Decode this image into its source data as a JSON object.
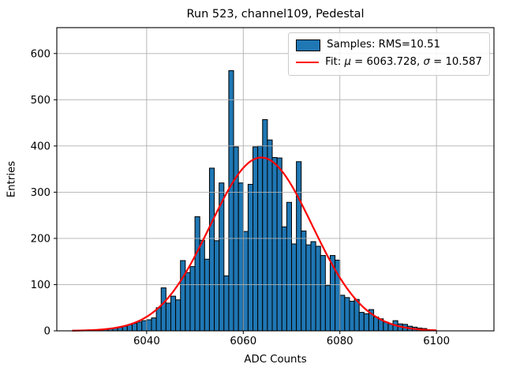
{
  "chart_data": {
    "type": "bar",
    "subtype": "histogram_with_gaussian_fit",
    "title": "Run 523, channel109, Pedestal",
    "xlabel": "ADC Counts",
    "ylabel": "Entries",
    "xlim": [
      6021.4,
      6111.9
    ],
    "ylim": [
      0,
      656
    ],
    "xticks": [
      6040,
      6060,
      6080,
      6100
    ],
    "yticks": [
      0,
      100,
      200,
      300,
      400,
      500,
      600
    ],
    "grid": true,
    "grid_color": "#b0b0b0",
    "legend_position": "upper right",
    "series": [
      {
        "name": "Samples: RMS=10.51",
        "kind": "histogram",
        "color": "#1f77b4",
        "edgecolor": "#000000",
        "bin_width": 1,
        "first_bin": 6026,
        "counts": [
          1,
          1,
          2,
          2,
          3,
          3,
          5,
          6,
          8,
          10,
          13,
          16,
          19,
          22,
          24,
          28,
          50,
          93,
          60,
          75,
          67,
          152,
          126,
          139,
          247,
          196,
          155,
          352,
          195,
          320,
          119,
          563,
          398,
          320,
          215,
          317,
          398,
          400,
          457,
          413,
          375,
          374,
          225,
          278,
          188,
          366,
          216,
          186,
          193,
          183,
          163,
          98,
          163,
          153,
          77,
          72,
          64,
          68,
          40,
          37,
          46,
          30,
          26,
          19,
          15,
          22,
          15,
          14,
          10,
          8,
          6,
          5,
          2
        ]
      },
      {
        "name": "Fit: μ = 6063.728, σ = 10.587",
        "kind": "gaussian",
        "color": "#ff0000",
        "mu": 6063.728,
        "sigma": 10.587,
        "amplitude": 375,
        "x_start": 6024.7,
        "x_end": 6100
      }
    ]
  },
  "legend": {
    "samples_label": "Samples: RMS=10.51",
    "fit": {
      "prefix": "Fit: ",
      "mu_symbol": "μ",
      "mu_eq": " = 6063.728, ",
      "sigma_symbol": "σ",
      "sigma_eq": " = 10.587"
    }
  }
}
